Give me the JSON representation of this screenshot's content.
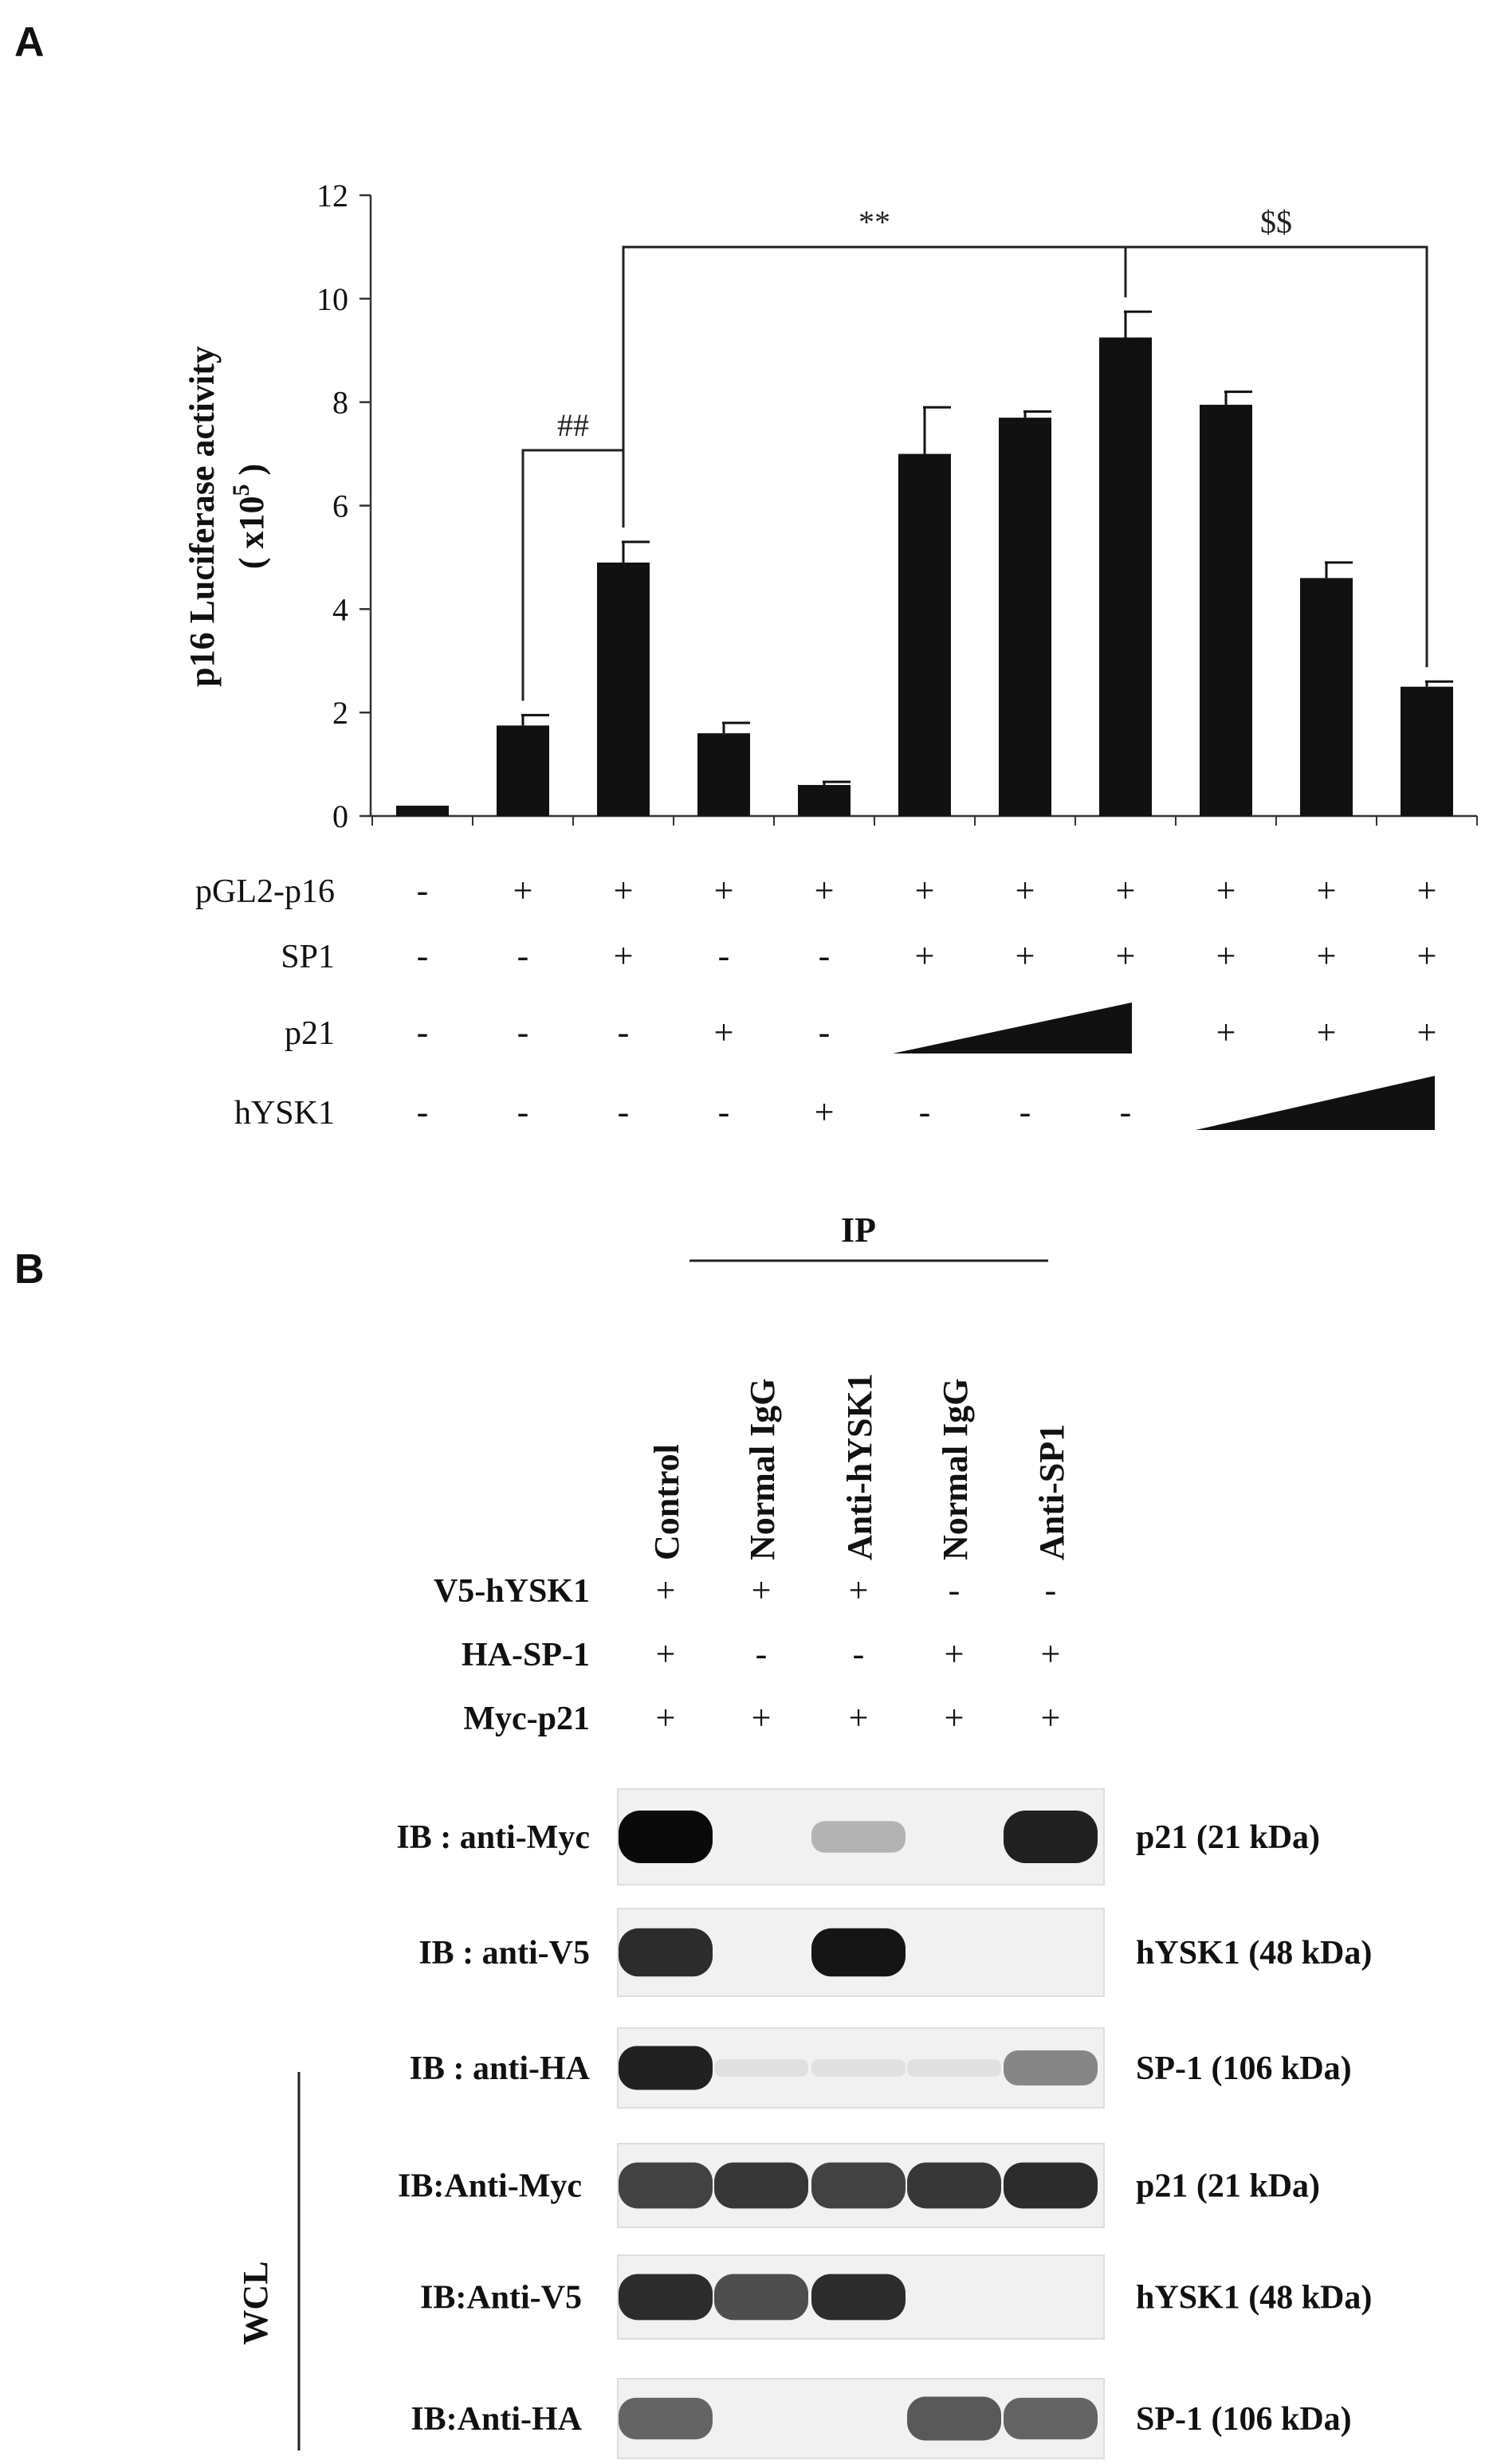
{
  "panel_a": {
    "letter": "A",
    "ylabel_line1": "p16  Luciferase activity",
    "ylabel_line2": "( x10",
    "ylabel_sup": "5",
    "ylabel_close": " )",
    "conditions": [
      {
        "label": "pGL2-p16",
        "values": [
          "-",
          "+",
          "+",
          "+",
          "+",
          "+",
          "+",
          "+",
          "+",
          "+",
          "+"
        ]
      },
      {
        "label": "SP1",
        "values": [
          "-",
          "-",
          "+",
          "-",
          "-",
          "+",
          "+",
          "+",
          "+",
          "+",
          "+"
        ]
      },
      {
        "label": "p21",
        "values": [
          "-",
          "-",
          "-",
          "+",
          "-",
          "",
          "",
          "",
          "+",
          "+",
          "+"
        ]
      },
      {
        "label": "hYSK1",
        "values": [
          "-",
          "-",
          "-",
          "-",
          "+",
          "-",
          "-",
          "-",
          "",
          "",
          ""
        ]
      }
    ]
  },
  "chart_data": {
    "type": "bar",
    "title": "",
    "xlabel": "",
    "ylabel": "p16 Luciferase activity (x10^5)",
    "ylim": [
      0,
      12
    ],
    "yticks": [
      "0",
      "2",
      "4",
      "6",
      "8",
      "10",
      "12"
    ],
    "values": [
      0.2,
      1.75,
      4.9,
      1.6,
      0.6,
      7.0,
      7.7,
      9.25,
      7.95,
      4.6,
      2.5
    ],
    "errors": [
      0.0,
      0.2,
      0.4,
      0.2,
      0.06,
      0.9,
      0.12,
      0.5,
      0.25,
      0.3,
      0.1
    ],
    "bar_color": "#111111",
    "grid": false,
    "significance": [
      {
        "label": "##",
        "from_bar": 1,
        "to_bar": 2
      },
      {
        "label": "**",
        "from_bar": 2,
        "to_bar": 7
      },
      {
        "label": "$$",
        "from_bar": 7,
        "to_bar": 10
      }
    ]
  },
  "panel_b": {
    "letter": "B",
    "ip_label": "IP",
    "lanes": [
      "Control",
      "Normal IgG",
      "Anti-hYSK1",
      "Normal IgG",
      "Anti-SP1"
    ],
    "treatments": [
      {
        "label": "V5-hYSK1",
        "values": [
          "+",
          "+",
          "+",
          "-",
          "-"
        ]
      },
      {
        "label": "HA-SP-1",
        "values": [
          "+",
          "-",
          "-",
          "+",
          "+"
        ]
      },
      {
        "label": "Myc-p21",
        "values": [
          "+",
          "+",
          "+",
          "+",
          "+"
        ]
      }
    ],
    "wcl_label": "WCL",
    "blots": [
      {
        "ib": "IB : anti-Myc",
        "protein": "p21 (21 kDa)",
        "intensity": [
          1.0,
          0,
          0.25,
          0,
          0.9
        ]
      },
      {
        "ib": "IB : anti-V5",
        "protein": "hYSK1 (48 kDa)",
        "intensity": [
          0.85,
          0,
          0.95,
          0,
          0
        ]
      },
      {
        "ib": "IB : anti-HA",
        "protein": "SP-1 (106 kDa)",
        "intensity": [
          0.9,
          0.05,
          0.05,
          0.05,
          0.45
        ]
      },
      {
        "ib": "IB:Anti-Myc",
        "protein": "p21 (21 kDa)",
        "intensity": [
          0.75,
          0.8,
          0.75,
          0.8,
          0.85
        ]
      },
      {
        "ib": "IB:Anti-V5",
        "protein": "hYSK1 (48 kDa)",
        "intensity": [
          0.85,
          0.7,
          0.85,
          0,
          0
        ]
      },
      {
        "ib": "IB:Anti-HA",
        "protein": "SP-1 (106 kDa)",
        "intensity": [
          0.6,
          0,
          0,
          0.65,
          0.6
        ]
      }
    ]
  }
}
